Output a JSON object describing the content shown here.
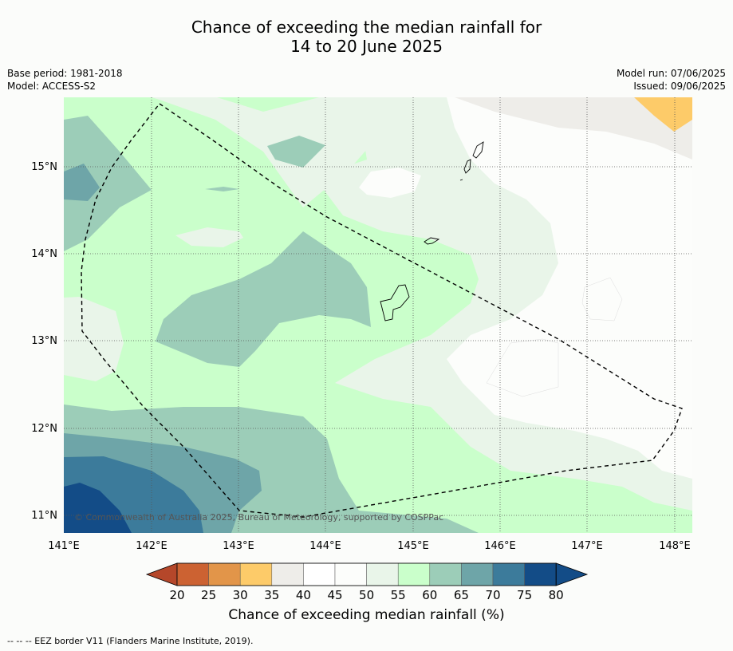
{
  "title_line1": "Chance of exceeding the median rainfall for",
  "title_line2": "14 to 20 June 2025",
  "base_period": "Base period: 1981-2018",
  "model": "Model: ACCESS-S2",
  "model_run": "Model run: 07/06/2025",
  "issued": "Issued: 09/06/2025",
  "copyright": "© Commonwealth of Australia 2025, Bureau of Meteorology, supported by COSPPac",
  "footnote": "--  --  -- EEZ border V11 (Flanders Marine Institute, 2019).",
  "colorbar": {
    "label": "Chance of exceeding median rainfall (%)",
    "ticks": [
      "20",
      "25",
      "30",
      "35",
      "40",
      "45",
      "50",
      "55",
      "60",
      "65",
      "70",
      "75",
      "80"
    ],
    "colors": [
      "#b5472a",
      "#cc6232",
      "#e29549",
      "#fdcb69",
      "#eeede9",
      "#ffffff",
      "#fcfdfb",
      "#e9f5e9",
      "#caffcb",
      "#9ccdb8",
      "#6ea5a8",
      "#3c7b9b",
      "#134c87"
    ]
  },
  "map": {
    "lon_labels": [
      "141°E",
      "142°E",
      "143°E",
      "144°E",
      "145°E",
      "146°E",
      "147°E",
      "148°E"
    ],
    "lat_labels": [
      "15°N",
      "14°N",
      "13°N",
      "12°N",
      "11°N"
    ]
  }
}
